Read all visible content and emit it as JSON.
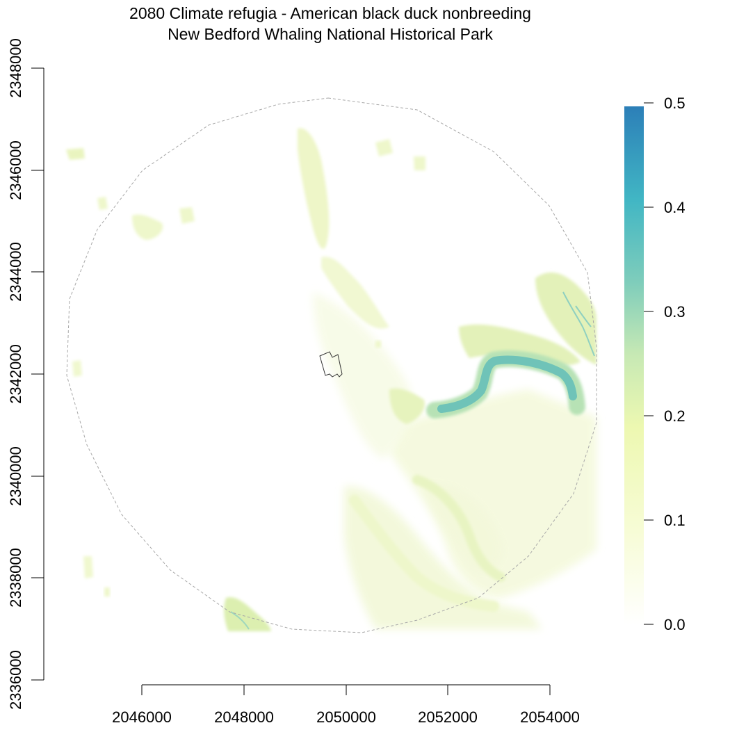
{
  "title": {
    "line1": "2080 Climate refugia - American black duck nonbreeding",
    "line2": "New Bedford Whaling National Historical Park"
  },
  "axes": {
    "x_ticks": [
      "2046000",
      "2048000",
      "2050000",
      "2052000",
      "2054000"
    ],
    "y_ticks": [
      "2336000",
      "2338000",
      "2340000",
      "2342000",
      "2344000",
      "2346000",
      "2348000"
    ]
  },
  "legend": {
    "ticks": [
      "0.0",
      "0.1",
      "0.2",
      "0.3",
      "0.4",
      "0.5"
    ],
    "range": [
      0,
      0.5
    ],
    "colors": [
      "#ffffff",
      "#f7fcd6",
      "#edf8b1",
      "#c7e9b4",
      "#7fcdbb",
      "#41b6c4",
      "#2c7fb8"
    ]
  },
  "map": {
    "x_range": [
      2044200,
      2055000
    ],
    "y_range": [
      2336000,
      2348000
    ]
  }
}
